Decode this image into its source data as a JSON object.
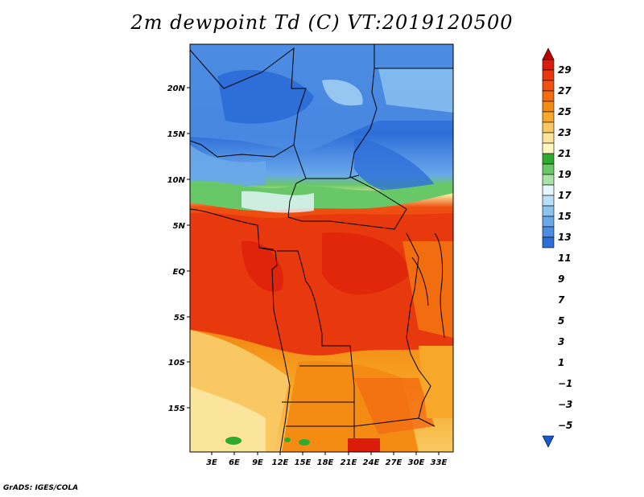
{
  "title": "2m dewpoint Td (C) VT:2019120500",
  "credit": "GrADS: IGES/COLA",
  "map": {
    "lat_labels": [
      "20N",
      "15N",
      "10N",
      "5N",
      "EQ",
      "5S",
      "10S",
      "15S"
    ],
    "lon_labels": [
      "3E",
      "6E",
      "9E",
      "12E",
      "15E",
      "18E",
      "21E",
      "24E",
      "27E",
      "30E",
      "33E"
    ]
  },
  "colorbar": {
    "labels": [
      "29",
      "27",
      "25",
      "23",
      "21",
      "19",
      "17",
      "15",
      "13",
      "11",
      "9",
      "7",
      "5",
      "3",
      "1",
      "−1",
      "−3",
      "−5"
    ],
    "colors": [
      "#c00000",
      "#dc1c0a",
      "#e8380e",
      "#f05010",
      "#f26c10",
      "#f48c14",
      "#f7a828",
      "#f9c862",
      "#fbe49c",
      "#fdf7c0",
      "#2eaa2e",
      "#68c868",
      "#a8e4a8",
      "#e6f7ff",
      "#b8e0f8",
      "#8cc4f0",
      "#6aa8ea",
      "#4c8ce2",
      "#2e6ed8",
      "#1a56cc"
    ]
  }
}
